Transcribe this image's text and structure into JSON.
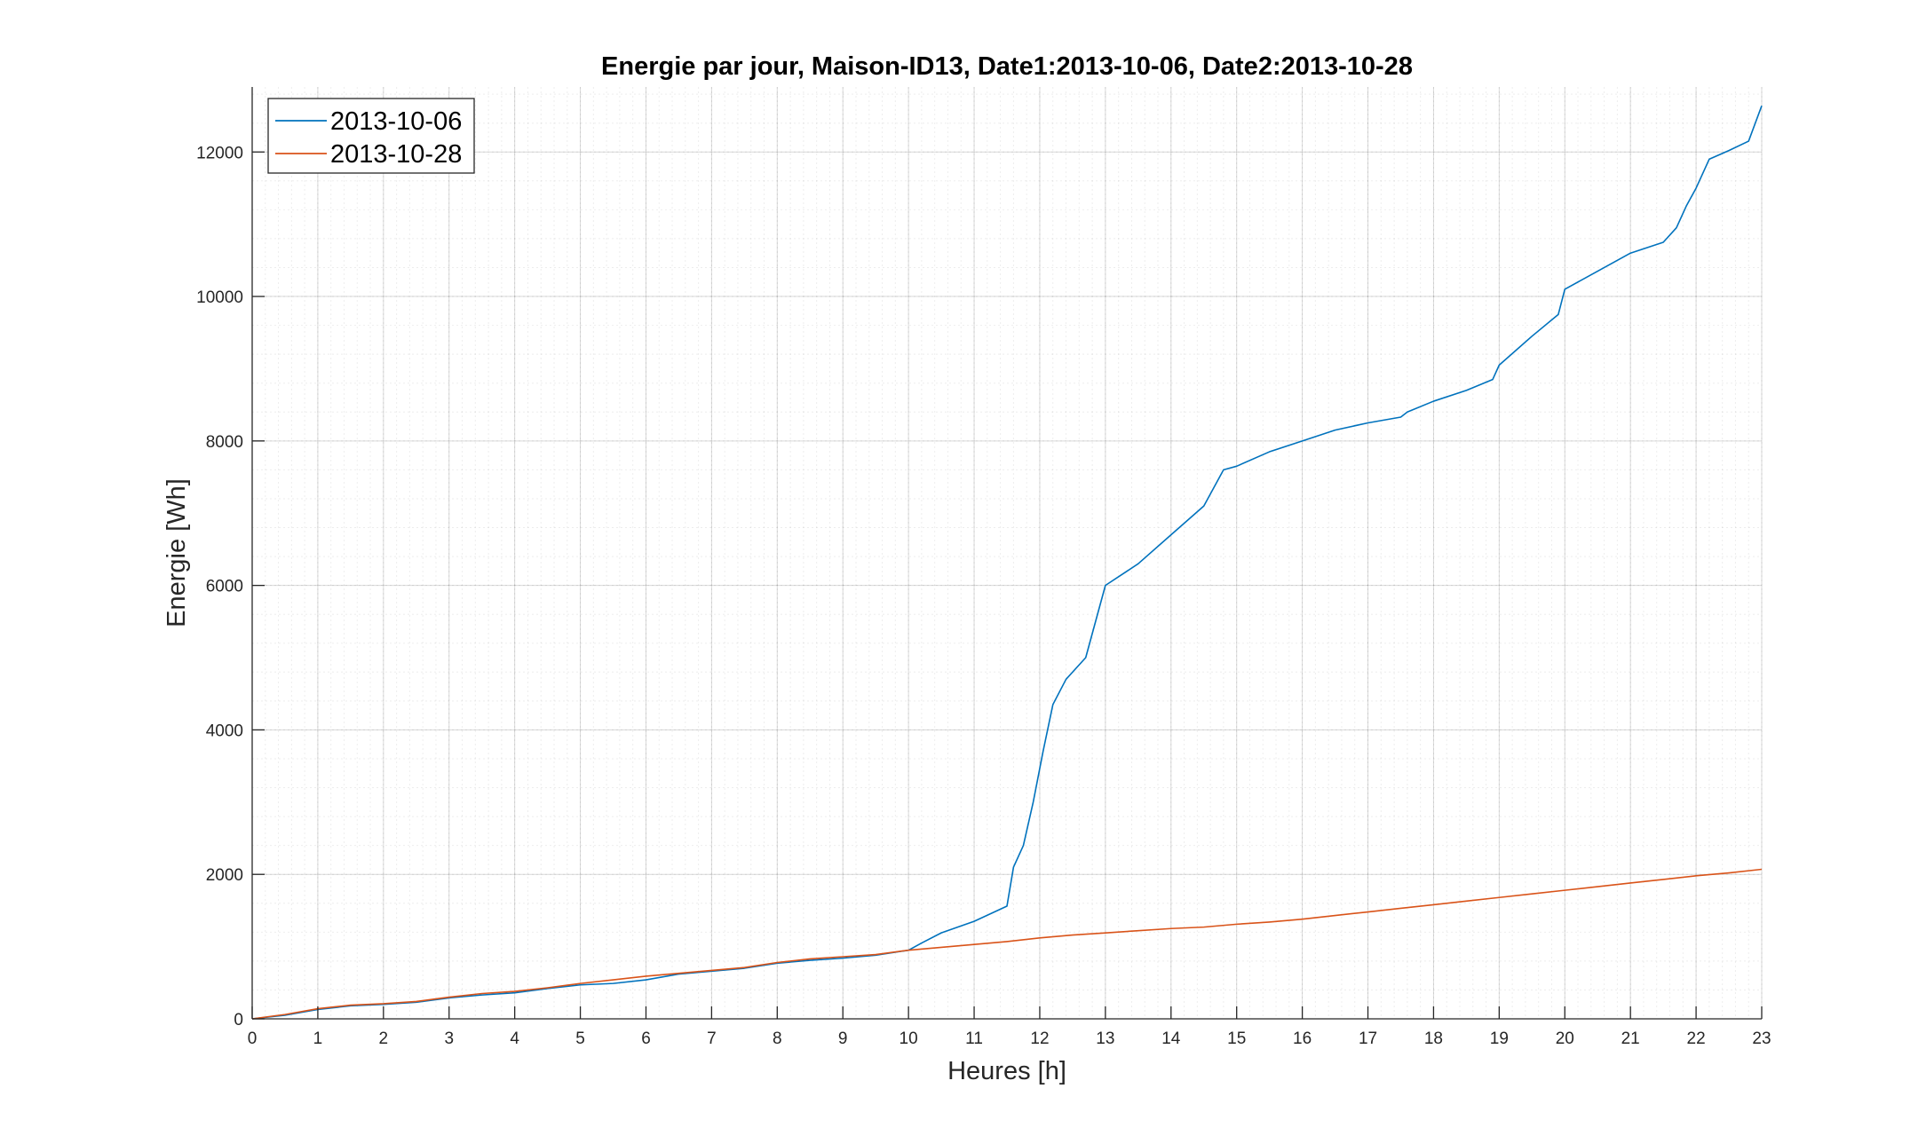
{
  "chart_data": {
    "type": "line",
    "title": "Energie par jour, Maison-ID13,  Date1:2013-10-06,  Date2:2013-10-28",
    "xlabel": "Heures [h]",
    "ylabel": "Energie [Wh]",
    "xlim": [
      0,
      23
    ],
    "ylim": [
      0,
      12900
    ],
    "xticks": [
      "0",
      "1",
      "2",
      "3",
      "4",
      "5",
      "6",
      "7",
      "8",
      "9",
      "10",
      "11",
      "12",
      "13",
      "14",
      "15",
      "16",
      "17",
      "18",
      "19",
      "20",
      "21",
      "22",
      "23"
    ],
    "yticks": [
      "0",
      "2000",
      "4000",
      "6000",
      "8000",
      "10000",
      "12000"
    ],
    "grid": true,
    "minor_grid": true,
    "legend_position": "top-left",
    "series": [
      {
        "name": "2013-10-06",
        "color": "#0072BD",
        "x": [
          0,
          0.5,
          1,
          1.5,
          2,
          2.5,
          3,
          3.5,
          4,
          4.5,
          5,
          5.5,
          6,
          6.5,
          7,
          7.5,
          8,
          8.5,
          9,
          9.5,
          10,
          10.2,
          10.5,
          11,
          11.5,
          11.6,
          11.75,
          11.9,
          12.05,
          12.2,
          12.4,
          12.7,
          13,
          13.5,
          14,
          14.5,
          14.8,
          15,
          15.5,
          16,
          16.5,
          17,
          17.5,
          17.6,
          18,
          18.5,
          18.9,
          19,
          19.5,
          19.9,
          20,
          20.5,
          21,
          21.5,
          21.7,
          21.85,
          22,
          22.2,
          22.5,
          22.8,
          23
        ],
        "y": [
          0,
          50,
          130,
          180,
          200,
          230,
          290,
          330,
          360,
          420,
          470,
          490,
          540,
          620,
          660,
          700,
          770,
          810,
          840,
          880,
          950,
          1050,
          1190,
          1350,
          1560,
          2100,
          2400,
          3000,
          3700,
          4350,
          4700,
          5000,
          6000,
          6300,
          6700,
          7100,
          7600,
          7650,
          7850,
          8000,
          8150,
          8250,
          8330,
          8400,
          8550,
          8700,
          8850,
          9050,
          9450,
          9750,
          10100,
          10350,
          10600,
          10750,
          10950,
          11250,
          11500,
          11900,
          12020,
          12150,
          12640
        ]
      },
      {
        "name": "2013-10-28",
        "color": "#D95319",
        "x": [
          0,
          0.5,
          1,
          1.5,
          2,
          2.5,
          3,
          3.5,
          4,
          4.5,
          5,
          5.5,
          6,
          6.5,
          7,
          7.5,
          8,
          8.5,
          9,
          9.5,
          10,
          10.5,
          11,
          11.5,
          12,
          12.5,
          13,
          13.5,
          14,
          14.5,
          15,
          15.5,
          16,
          16.5,
          17,
          17.5,
          18,
          18.5,
          19,
          19.5,
          20,
          20.5,
          21,
          21.5,
          22,
          22.5,
          23
        ],
        "y": [
          0,
          60,
          140,
          190,
          210,
          240,
          300,
          350,
          380,
          430,
          490,
          540,
          590,
          630,
          670,
          710,
          780,
          830,
          860,
          890,
          950,
          990,
          1030,
          1070,
          1120,
          1160,
          1190,
          1220,
          1250,
          1270,
          1310,
          1340,
          1380,
          1430,
          1480,
          1530,
          1580,
          1630,
          1680,
          1730,
          1780,
          1830,
          1880,
          1930,
          1980,
          2020,
          2070
        ]
      }
    ]
  }
}
